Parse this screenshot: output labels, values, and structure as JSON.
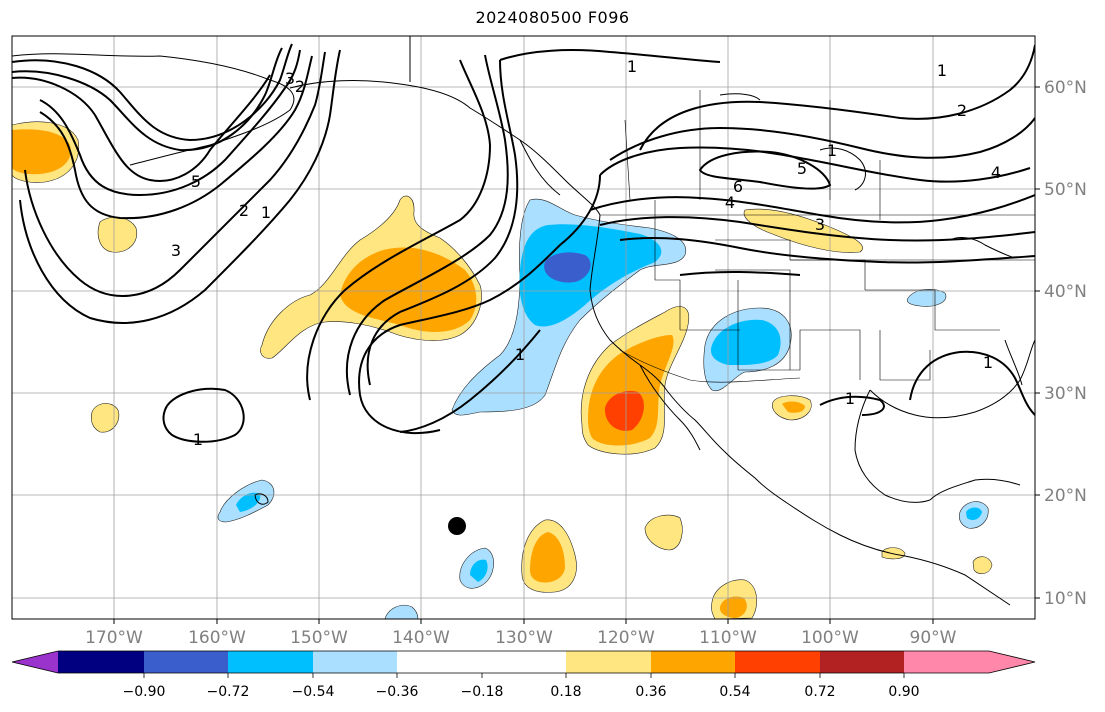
{
  "title": "2024080500 F096",
  "map": {
    "longitude_labels": [
      "170°W",
      "160°W",
      "150°W",
      "140°W",
      "130°W",
      "120°W",
      "110°W",
      "100°W",
      "90°W"
    ],
    "latitude_labels": [
      "60°N",
      "50°N",
      "40°N",
      "30°N",
      "20°N",
      "10°N"
    ],
    "gridline_color": "#a0a0a0",
    "contour_labels": [
      "1",
      "2",
      "3",
      "5",
      "1",
      "3",
      "2",
      "1",
      "6",
      "5",
      "3",
      "4",
      "1",
      "2",
      "4",
      "1",
      "1",
      "1",
      "1"
    ]
  },
  "colorbar": {
    "tick_labels": [
      "−0.90",
      "−0.72",
      "−0.54",
      "−0.36",
      "−0.18",
      "0.18",
      "0.36",
      "0.54",
      "0.72",
      "0.90"
    ],
    "colors": [
      "#9933cc",
      "#000080",
      "#3a5fcd",
      "#00bfff",
      "#aadfff",
      "#ffffff",
      "#ffe680",
      "#ffa500",
      "#ff4000",
      "#b22222",
      "#ff88aa"
    ]
  }
}
